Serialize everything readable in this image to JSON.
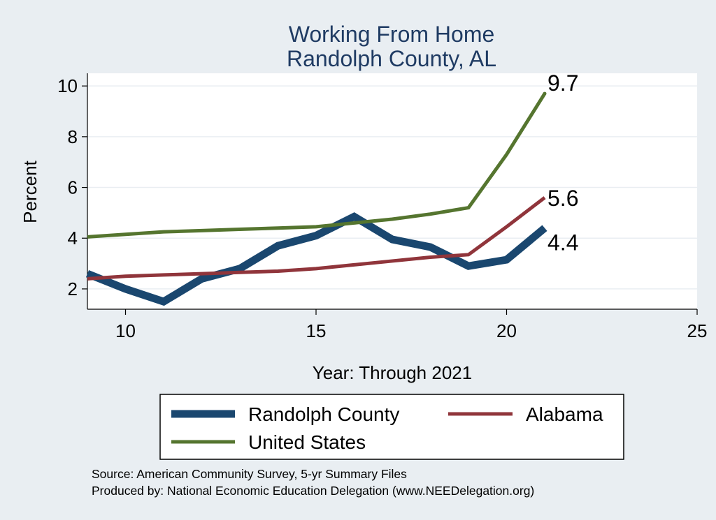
{
  "title_lines": [
    "Working From Home",
    "Randolph County, AL"
  ],
  "source_lines": [
    "Source: American Community Survey, 5-yr Summary Files",
    "Produced by: National Economic Education Delegation (www.NEEDelegation.org)"
  ],
  "chart_data": {
    "type": "line",
    "xlabel": "Year: Through 2021",
    "ylabel": "Percent",
    "xlim": [
      9,
      25
    ],
    "ylim": [
      1.2,
      10.5
    ],
    "xticks": [
      10,
      15,
      20,
      25
    ],
    "yticks": [
      2,
      4,
      6,
      8,
      10
    ],
    "grid": "horizontal",
    "legend_placement": "bottom",
    "x": [
      9,
      10,
      11,
      12,
      13,
      14,
      15,
      16,
      17,
      18,
      19,
      20,
      21
    ],
    "series": [
      {
        "name": "Randolph County",
        "color": "#1a476f",
        "values": [
          2.6,
          2.0,
          1.5,
          2.4,
          2.8,
          3.7,
          4.1,
          4.85,
          3.95,
          3.65,
          2.9,
          3.15,
          4.4
        ],
        "end_label": "4.4"
      },
      {
        "name": "Alabama",
        "color": "#90353b",
        "values": [
          2.4,
          2.5,
          2.55,
          2.6,
          2.65,
          2.7,
          2.8,
          2.95,
          3.1,
          3.25,
          3.35,
          4.45,
          5.6
        ],
        "end_label": "5.6"
      },
      {
        "name": "United States",
        "color": "#55752f",
        "values": [
          4.05,
          4.15,
          4.25,
          4.3,
          4.35,
          4.4,
          4.45,
          4.6,
          4.75,
          4.95,
          5.2,
          7.3,
          9.7
        ],
        "end_label": "9.7"
      }
    ]
  }
}
